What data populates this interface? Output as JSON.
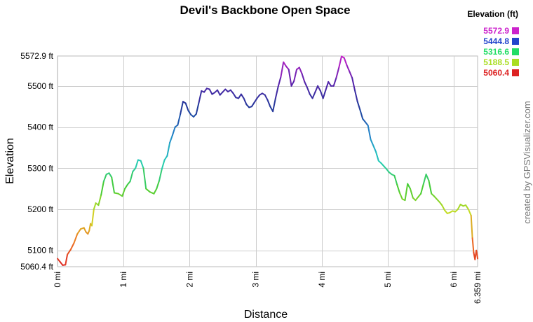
{
  "chart_data": {
    "type": "line",
    "title": "Devil's Backbone Open Space",
    "xlabel": "Distance",
    "ylabel": "Elevation",
    "x_unit": "mi",
    "y_unit": "ft",
    "xlim": [
      0,
      6.359
    ],
    "ylim": [
      5060.4,
      5572.9
    ],
    "grid": true,
    "x_ticks": [
      0,
      1,
      2,
      3,
      4,
      5,
      6
    ],
    "x_tick_labels": [
      "0 mi",
      "1 mi",
      "2 mi",
      "3 mi",
      "4 mi",
      "5 mi",
      "6 mi",
      "6.359 mi"
    ],
    "y_ticks": [
      5100,
      5200,
      5300,
      5400,
      5500
    ],
    "y_tick_labels": [
      "5060.4 ft",
      "5100 ft",
      "5200 ft",
      "5300 ft",
      "5400 ft",
      "5500 ft",
      "5572.9 ft"
    ],
    "legend": {
      "title": "Elevation (ft)",
      "placement": "top-right",
      "entries": [
        {
          "label": "5572.9",
          "color": "#cc22cc"
        },
        {
          "label": "5444.8",
          "color": "#2244cc"
        },
        {
          "label": "5316.6",
          "color": "#22dd66"
        },
        {
          "label": "5188.5",
          "color": "#aadd22"
        },
        {
          "label": "5060.4",
          "color": "#dd2222"
        }
      ]
    },
    "color_scale": [
      {
        "value": 5060.4,
        "color": "#dd2222"
      },
      {
        "value": 5124.4,
        "color": "#ee7722"
      },
      {
        "value": 5188.5,
        "color": "#ccdd22"
      },
      {
        "value": 5252.5,
        "color": "#44cc33"
      },
      {
        "value": 5316.6,
        "color": "#22ccbb"
      },
      {
        "value": 5380.7,
        "color": "#2288cc"
      },
      {
        "value": 5444.8,
        "color": "#1f3a99"
      },
      {
        "value": 5508.8,
        "color": "#5522aa"
      },
      {
        "value": 5572.9,
        "color": "#cc22cc"
      }
    ],
    "series": [
      {
        "points": [
          [
            0.0,
            5080
          ],
          [
            0.04,
            5072
          ],
          [
            0.08,
            5064
          ],
          [
            0.12,
            5065
          ],
          [
            0.15,
            5090
          ],
          [
            0.2,
            5102
          ],
          [
            0.25,
            5118
          ],
          [
            0.3,
            5140
          ],
          [
            0.35,
            5152
          ],
          [
            0.4,
            5155
          ],
          [
            0.43,
            5145
          ],
          [
            0.46,
            5140
          ],
          [
            0.48,
            5148
          ],
          [
            0.5,
            5165
          ],
          [
            0.52,
            5160
          ],
          [
            0.55,
            5200
          ],
          [
            0.58,
            5215
          ],
          [
            0.62,
            5210
          ],
          [
            0.66,
            5235
          ],
          [
            0.7,
            5268
          ],
          [
            0.74,
            5285
          ],
          [
            0.78,
            5288
          ],
          [
            0.82,
            5278
          ],
          [
            0.86,
            5240
          ],
          [
            0.92,
            5238
          ],
          [
            0.98,
            5232
          ],
          [
            1.02,
            5250
          ],
          [
            1.06,
            5260
          ],
          [
            1.1,
            5268
          ],
          [
            1.14,
            5292
          ],
          [
            1.18,
            5300
          ],
          [
            1.22,
            5320
          ],
          [
            1.26,
            5318
          ],
          [
            1.3,
            5300
          ],
          [
            1.34,
            5250
          ],
          [
            1.4,
            5242
          ],
          [
            1.46,
            5238
          ],
          [
            1.5,
            5250
          ],
          [
            1.54,
            5270
          ],
          [
            1.58,
            5298
          ],
          [
            1.62,
            5320
          ],
          [
            1.66,
            5330
          ],
          [
            1.7,
            5362
          ],
          [
            1.74,
            5380
          ],
          [
            1.78,
            5400
          ],
          [
            1.82,
            5405
          ],
          [
            1.86,
            5432
          ],
          [
            1.9,
            5462
          ],
          [
            1.94,
            5458
          ],
          [
            1.98,
            5440
          ],
          [
            2.02,
            5430
          ],
          [
            2.06,
            5425
          ],
          [
            2.1,
            5432
          ],
          [
            2.14,
            5460
          ],
          [
            2.18,
            5488
          ],
          [
            2.22,
            5485
          ],
          [
            2.26,
            5494
          ],
          [
            2.3,
            5492
          ],
          [
            2.34,
            5480
          ],
          [
            2.38,
            5484
          ],
          [
            2.42,
            5490
          ],
          [
            2.46,
            5478
          ],
          [
            2.5,
            5485
          ],
          [
            2.54,
            5492
          ],
          [
            2.58,
            5486
          ],
          [
            2.62,
            5490
          ],
          [
            2.66,
            5482
          ],
          [
            2.7,
            5472
          ],
          [
            2.74,
            5470
          ],
          [
            2.78,
            5480
          ],
          [
            2.82,
            5470
          ],
          [
            2.86,
            5455
          ],
          [
            2.9,
            5448
          ],
          [
            2.94,
            5450
          ],
          [
            2.98,
            5460
          ],
          [
            3.02,
            5470
          ],
          [
            3.06,
            5478
          ],
          [
            3.1,
            5482
          ],
          [
            3.14,
            5478
          ],
          [
            3.18,
            5466
          ],
          [
            3.22,
            5450
          ],
          [
            3.26,
            5438
          ],
          [
            3.3,
            5470
          ],
          [
            3.34,
            5498
          ],
          [
            3.38,
            5522
          ],
          [
            3.42,
            5558
          ],
          [
            3.46,
            5548
          ],
          [
            3.5,
            5540
          ],
          [
            3.54,
            5500
          ],
          [
            3.58,
            5512
          ],
          [
            3.62,
            5540
          ],
          [
            3.66,
            5545
          ],
          [
            3.7,
            5530
          ],
          [
            3.74,
            5510
          ],
          [
            3.78,
            5496
          ],
          [
            3.82,
            5480
          ],
          [
            3.86,
            5470
          ],
          [
            3.9,
            5485
          ],
          [
            3.94,
            5500
          ],
          [
            3.98,
            5488
          ],
          [
            4.02,
            5470
          ],
          [
            4.06,
            5490
          ],
          [
            4.1,
            5510
          ],
          [
            4.14,
            5500
          ],
          [
            4.18,
            5500
          ],
          [
            4.22,
            5520
          ],
          [
            4.26,
            5545
          ],
          [
            4.3,
            5572
          ],
          [
            4.34,
            5568
          ],
          [
            4.38,
            5550
          ],
          [
            4.42,
            5535
          ],
          [
            4.46,
            5520
          ],
          [
            4.5,
            5490
          ],
          [
            4.54,
            5462
          ],
          [
            4.58,
            5442
          ],
          [
            4.62,
            5420
          ],
          [
            4.66,
            5412
          ],
          [
            4.7,
            5404
          ],
          [
            4.74,
            5370
          ],
          [
            4.78,
            5355
          ],
          [
            4.82,
            5340
          ],
          [
            4.86,
            5318
          ],
          [
            4.9,
            5312
          ],
          [
            4.94,
            5305
          ],
          [
            4.98,
            5298
          ],
          [
            5.02,
            5290
          ],
          [
            5.06,
            5285
          ],
          [
            5.1,
            5282
          ],
          [
            5.14,
            5260
          ],
          [
            5.18,
            5240
          ],
          [
            5.22,
            5225
          ],
          [
            5.26,
            5222
          ],
          [
            5.3,
            5262
          ],
          [
            5.34,
            5250
          ],
          [
            5.38,
            5228
          ],
          [
            5.42,
            5222
          ],
          [
            5.46,
            5230
          ],
          [
            5.5,
            5238
          ],
          [
            5.54,
            5262
          ],
          [
            5.58,
            5285
          ],
          [
            5.62,
            5270
          ],
          [
            5.66,
            5238
          ],
          [
            5.7,
            5232
          ],
          [
            5.74,
            5225
          ],
          [
            5.78,
            5218
          ],
          [
            5.82,
            5210
          ],
          [
            5.86,
            5198
          ],
          [
            5.9,
            5190
          ],
          [
            5.94,
            5192
          ],
          [
            5.98,
            5196
          ],
          [
            6.02,
            5194
          ],
          [
            6.06,
            5200
          ],
          [
            6.1,
            5212
          ],
          [
            6.14,
            5208
          ],
          [
            6.18,
            5210
          ],
          [
            6.22,
            5200
          ],
          [
            6.26,
            5185
          ],
          [
            6.28,
            5130
          ],
          [
            6.3,
            5095
          ],
          [
            6.32,
            5078
          ],
          [
            6.34,
            5100
          ],
          [
            6.36,
            5080
          ]
        ]
      }
    ]
  },
  "credit": "created by GPSVisualizer.com"
}
